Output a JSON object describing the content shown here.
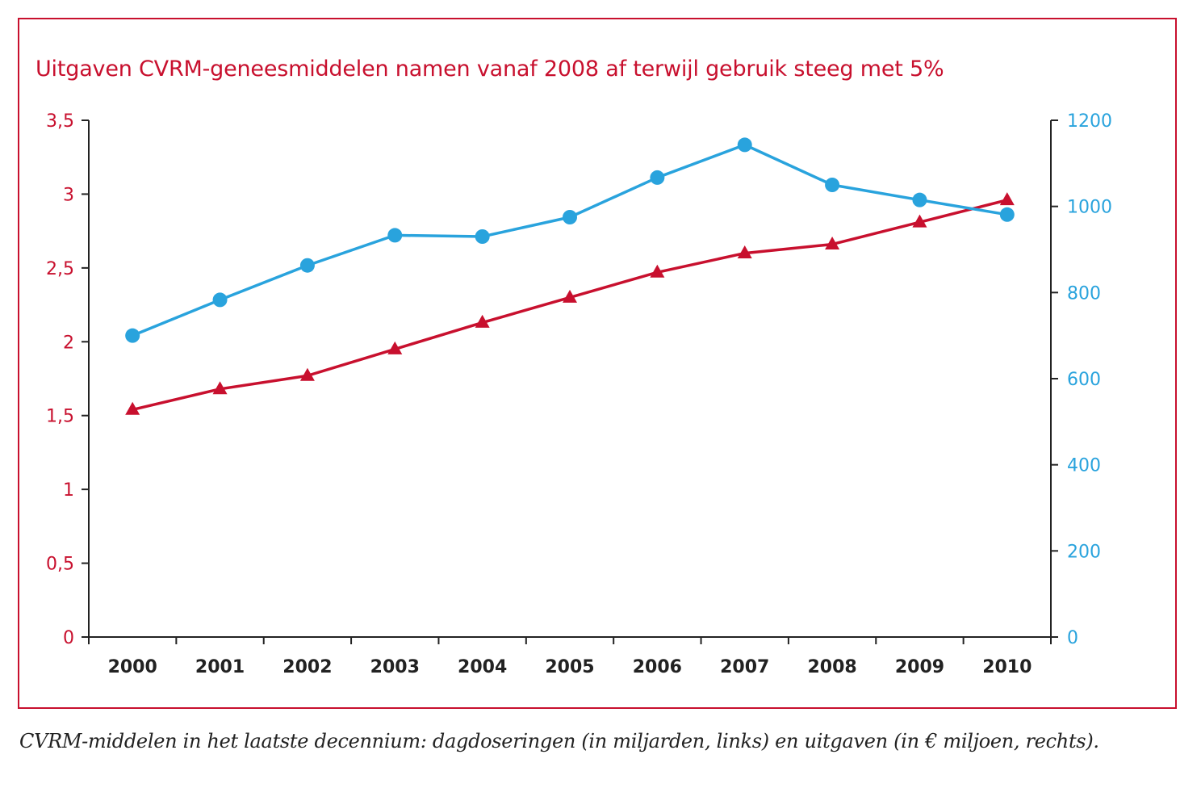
{
  "chart_data": {
    "type": "line",
    "title": "Uitgaven CVRM-geneesmiddelen namen vanaf 2008 af terwijl gebruik steeg met 5%",
    "caption": "CVRM-middelen in het laatste decennium: dagdoseringen (in miljarden, links) en uitgaven (in € miljoen, rechts).",
    "categories": [
      "2000",
      "2001",
      "2002",
      "2003",
      "2004",
      "2005",
      "2006",
      "2007",
      "2008",
      "2009",
      "2010"
    ],
    "y_left": {
      "range": [
        0,
        3.5
      ],
      "ticks": [
        0,
        0.5,
        1,
        1.5,
        2,
        2.5,
        3,
        3.5
      ],
      "tick_labels": [
        "0",
        "0,5",
        "1",
        "1,5",
        "2",
        "2,5",
        "3",
        "3,5"
      ],
      "color": "#c8102e"
    },
    "y_right": {
      "range": [
        0,
        1200
      ],
      "ticks": [
        0,
        200,
        400,
        600,
        800,
        1000,
        1200
      ],
      "tick_labels": [
        "0",
        "200",
        "400",
        "600",
        "800",
        "1000",
        "1200"
      ],
      "color": "#29a3dd"
    },
    "series": [
      {
        "axis": "left",
        "marker": "triangle",
        "color": "#c8102e",
        "values": [
          1.54,
          1.68,
          1.77,
          1.95,
          2.13,
          2.3,
          2.47,
          2.6,
          2.66,
          2.81,
          2.96
        ]
      },
      {
        "axis": "right",
        "marker": "circle",
        "color": "#29a3dd",
        "values": [
          700,
          783,
          863,
          933,
          930,
          975,
          1067,
          1143,
          1050,
          1015,
          981
        ]
      }
    ],
    "grid": false,
    "legend": "none"
  }
}
